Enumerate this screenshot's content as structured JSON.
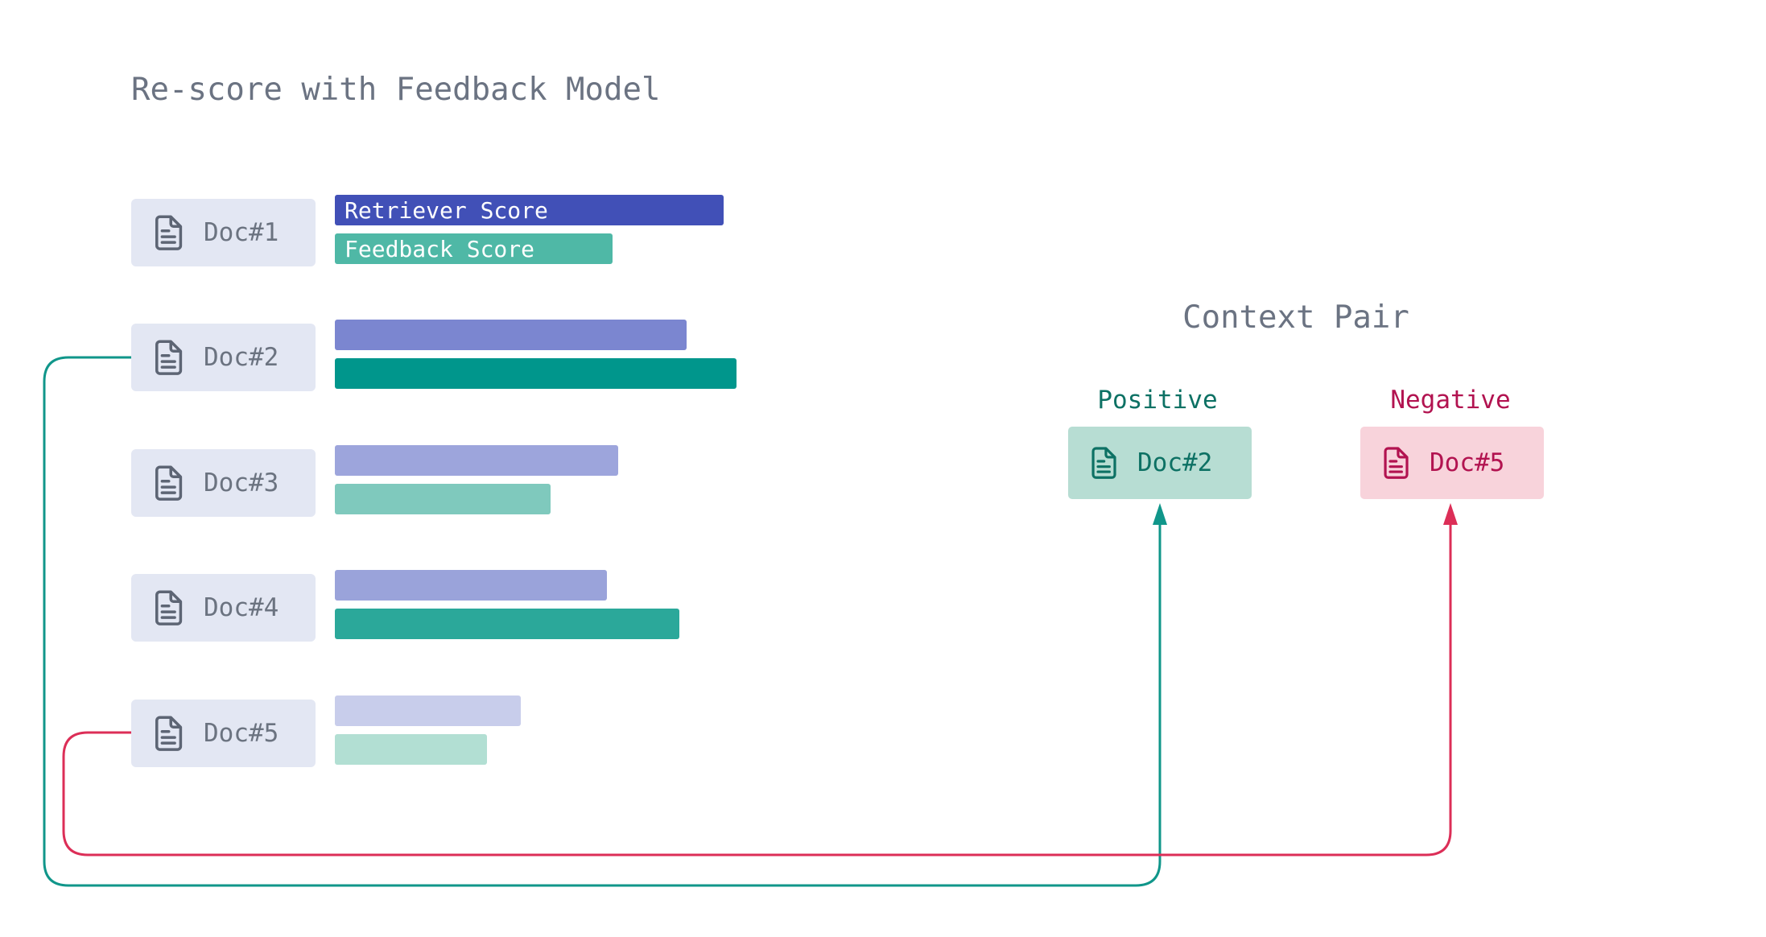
{
  "title": "Re-score with Feedback Model",
  "legend": {
    "retriever_label": "Retriever Score",
    "feedback_label": "Feedback Score"
  },
  "docs": [
    {
      "label": "Doc#1",
      "retriever": {
        "length": 483,
        "color": "#4150b7"
      },
      "feedback": {
        "length": 345,
        "color": "#4fb8a6"
      }
    },
    {
      "label": "Doc#2",
      "retriever": {
        "length": 437,
        "color": "#7b86d0"
      },
      "feedback": {
        "length": 499,
        "color": "#00968c"
      }
    },
    {
      "label": "Doc#3",
      "retriever": {
        "length": 352,
        "color": "#9da5dc"
      },
      "feedback": {
        "length": 268,
        "color": "#7fc9bd"
      }
    },
    {
      "label": "Doc#4",
      "retriever": {
        "length": 338,
        "color": "#9aa3da"
      },
      "feedback": {
        "length": 428,
        "color": "#2ba89a"
      }
    },
    {
      "label": "Doc#5",
      "retriever": {
        "length": 231,
        "color": "#c8cdeb"
      },
      "feedback": {
        "length": 189,
        "color": "#b2dfd3"
      }
    }
  ],
  "context_pair": {
    "title": "Context Pair",
    "positive": {
      "label": "Positive",
      "doc": "Doc#2"
    },
    "negative": {
      "label": "Negative",
      "doc": "Doc#5"
    }
  },
  "colors": {
    "title_text": "#6b7382",
    "doc_card_bg": "#e3e7f3",
    "doc_card_text": "#6b7380",
    "positive_line": "#10968a",
    "negative_line": "#dc2e57",
    "positive_box_bg": "#b7ddd3",
    "positive_text": "#0d7164",
    "negative_box_bg": "#f8d3db",
    "negative_text": "#b21350"
  }
}
